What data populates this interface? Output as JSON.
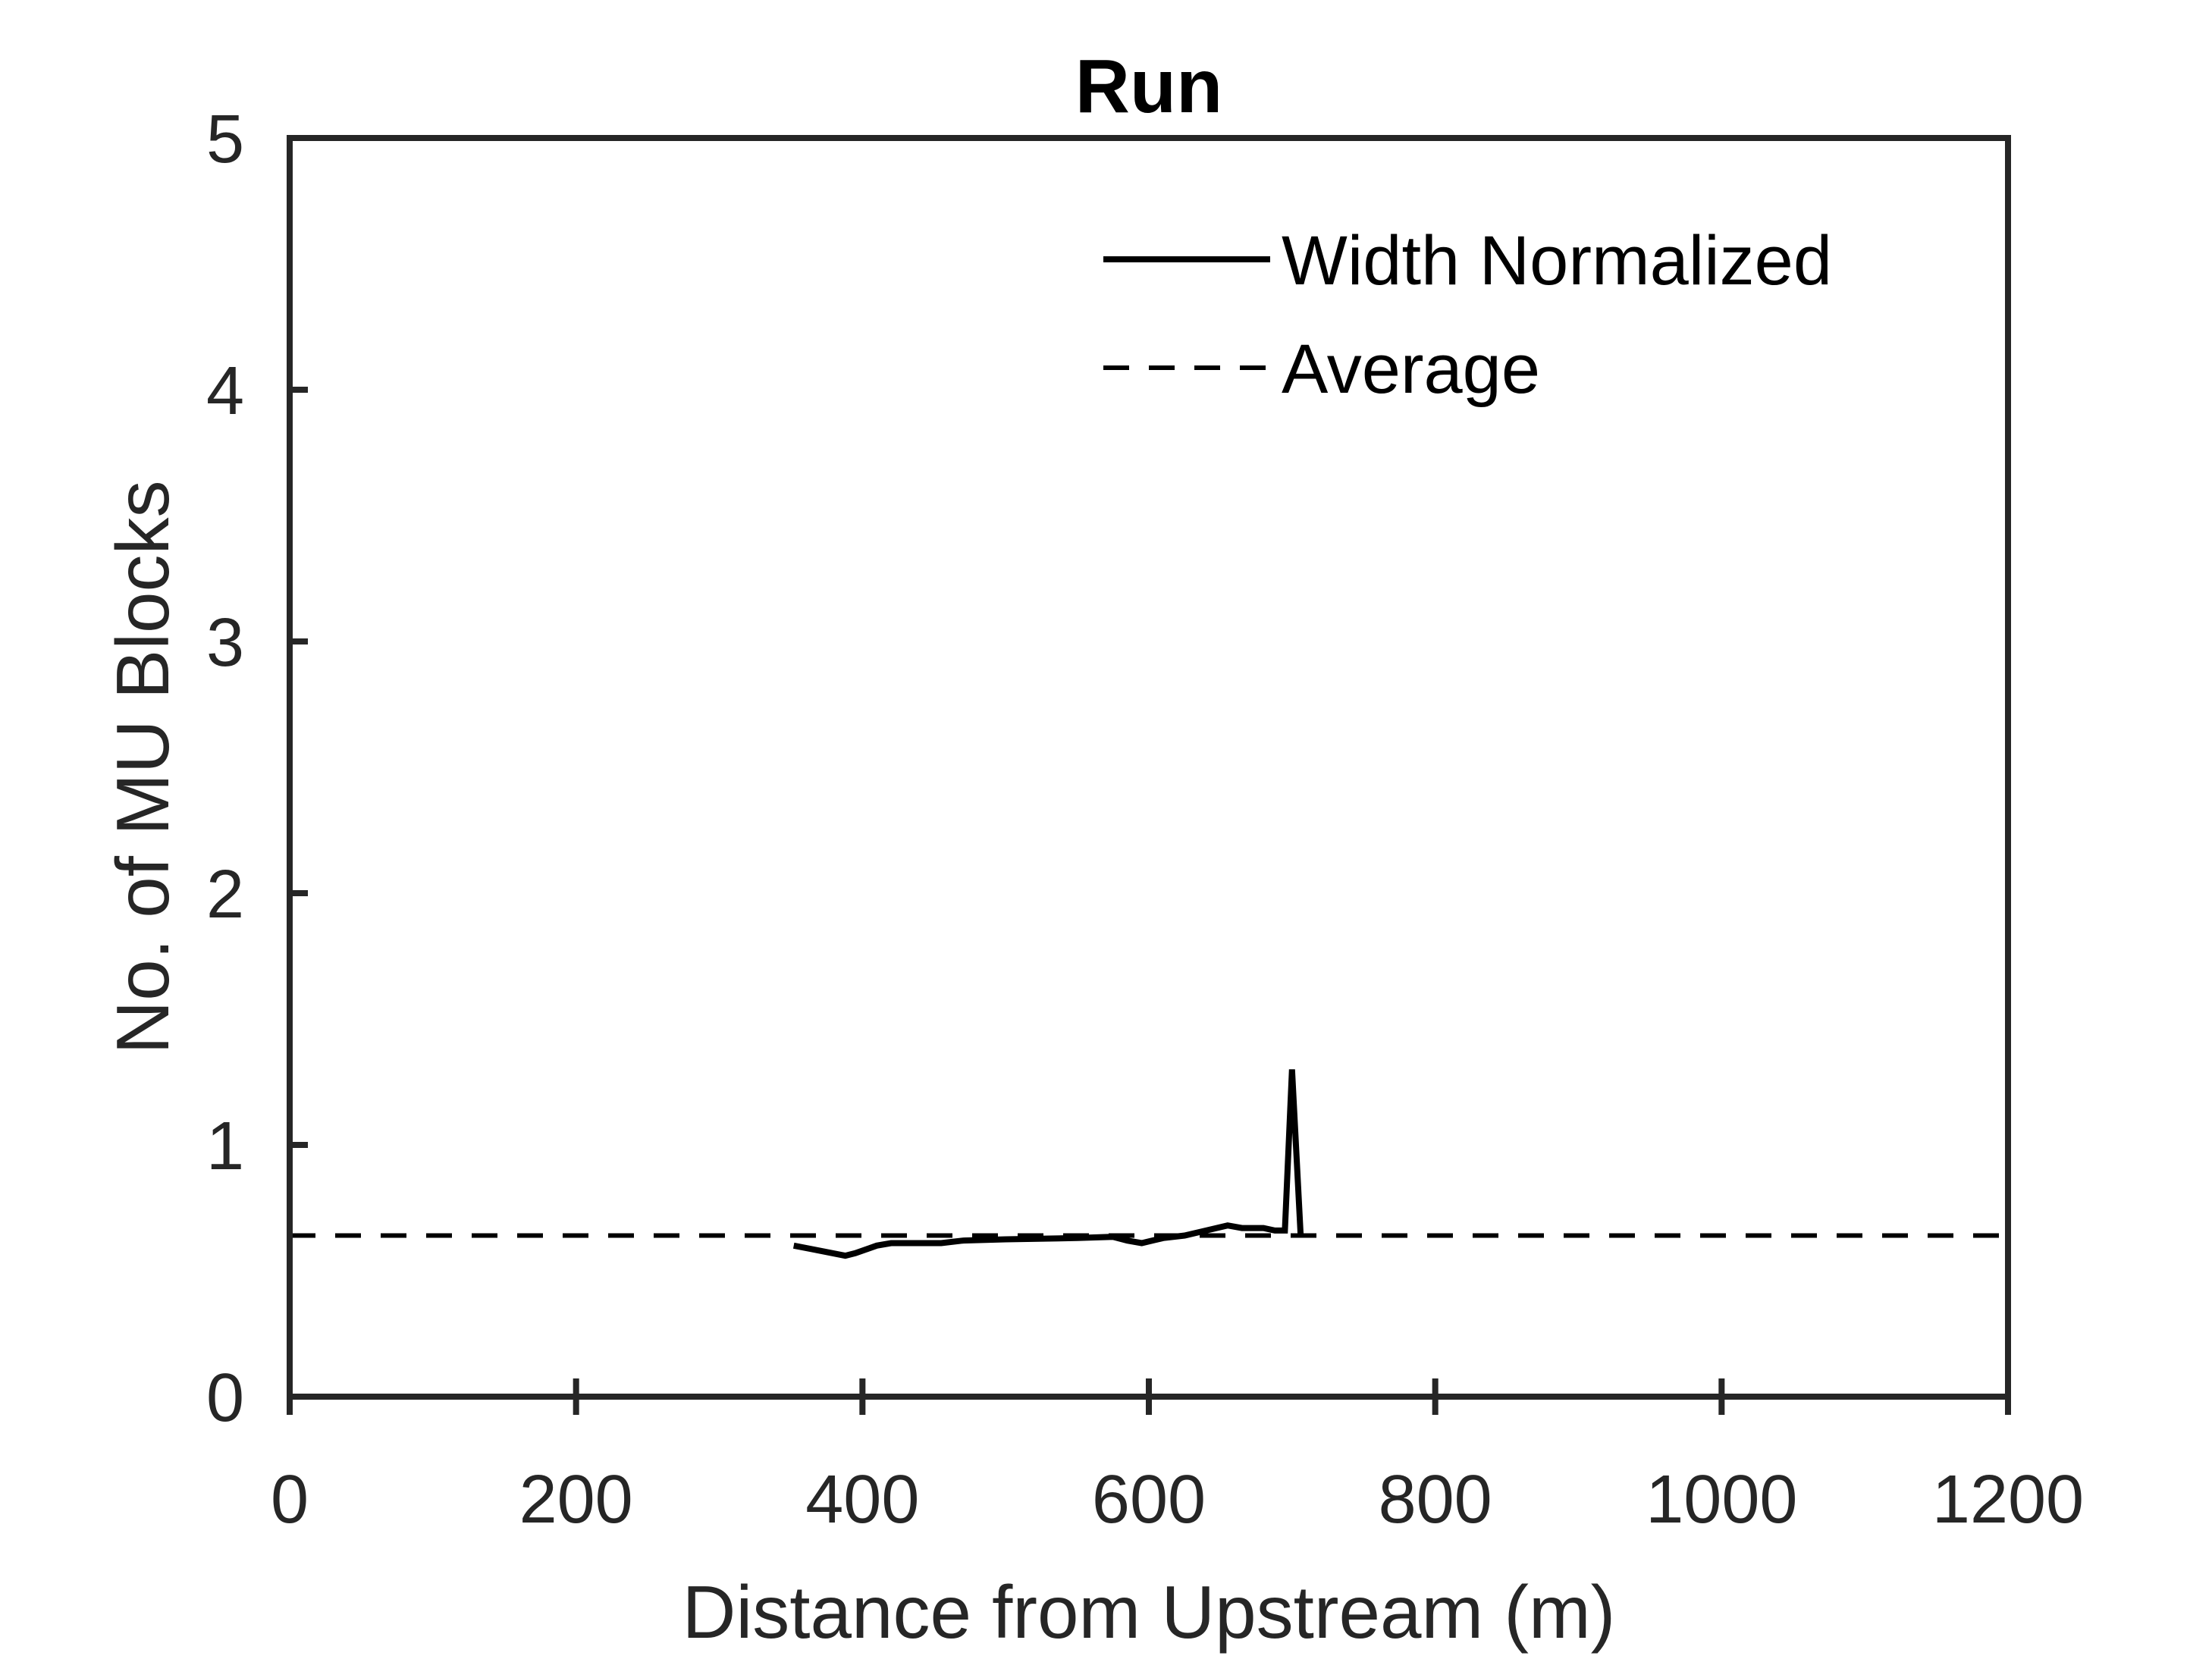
{
  "chart_data": {
    "type": "line",
    "title": "Run",
    "xlabel": "Distance from Upstream (m)",
    "ylabel": "No. of MU Blocks",
    "xlim": [
      0,
      1200
    ],
    "ylim": [
      0,
      5
    ],
    "xticks": [
      0,
      200,
      400,
      600,
      800,
      1000,
      1200
    ],
    "yticks": [
      0,
      1,
      2,
      3,
      4,
      5
    ],
    "xtick_labels": [
      "0",
      "200",
      "400",
      "600",
      "800",
      "1000",
      "1200"
    ],
    "ytick_labels": [
      "0",
      "1",
      "2",
      "3",
      "4",
      "5"
    ],
    "grid": false,
    "legend_position": "top-right",
    "series": [
      {
        "name": "Width Normalized",
        "style": "solid",
        "color": "#000000",
        "x": [
          352,
          370,
          388,
          395,
          410,
          420,
          440,
          455,
          470,
          500,
          550,
          575,
          585,
          595,
          610,
          625,
          640,
          655,
          665,
          680,
          688,
          695,
          700,
          706
        ],
        "y": [
          0.6,
          0.58,
          0.56,
          0.57,
          0.6,
          0.61,
          0.61,
          0.61,
          0.62,
          0.625,
          0.63,
          0.635,
          0.62,
          0.61,
          0.63,
          0.64,
          0.66,
          0.68,
          0.67,
          0.67,
          0.66,
          0.66,
          1.3,
          0.64
        ]
      },
      {
        "name": "Average",
        "style": "dashed",
        "color": "#000000",
        "x": [
          0,
          1200
        ],
        "y": [
          0.64,
          0.64
        ]
      }
    ]
  }
}
